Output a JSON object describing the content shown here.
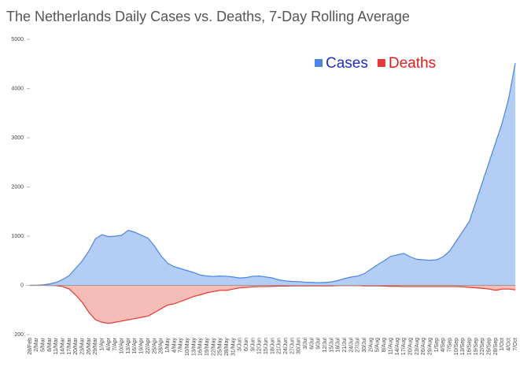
{
  "chart_data": {
    "type": "area",
    "title": "The Netherlands Daily Cases vs. Deaths, 7-Day Rolling Average",
    "categories": [
      "28/Feb",
      "2/Mar",
      "5/Mar",
      "8/Mar",
      "11/Mar",
      "14/Mar",
      "17/Mar",
      "20/Mar",
      "23/Mar",
      "26/Mar",
      "29/Mar",
      "1/Apr",
      "4/Apr",
      "7/Apr",
      "10/Apr",
      "13/Apr",
      "16/Apr",
      "19/Apr",
      "22/Apr",
      "25/Apr",
      "28/Apr",
      "1/May",
      "4/May",
      "7/May",
      "10/May",
      "13/May",
      "16/May",
      "19/May",
      "22/May",
      "25/May",
      "28/May",
      "31/May",
      "3/Jun",
      "6/Jun",
      "9/Jun",
      "12/Jun",
      "15/Jun",
      "18/Jun",
      "21/Jun",
      "24/Jun",
      "27/Jun",
      "30/Jun",
      "3/Jul",
      "6/Jul",
      "9/Jul",
      "12/Jul",
      "15/Jul",
      "18/Jul",
      "21/Jul",
      "24/Jul",
      "27/Jul",
      "30/Jul",
      "2/Aug",
      "5/Aug",
      "8/Aug",
      "11/Aug",
      "14/Aug",
      "17/Aug",
      "20/Aug",
      "23/Aug",
      "26/Aug",
      "29/Aug",
      "1/Sep",
      "4/Sep",
      "7/Sep",
      "10/Sep",
      "13/Sep",
      "16/Sep",
      "19/Sep",
      "22/Sep",
      "25/Sep",
      "28/Sep",
      "1/Oct",
      "4/Oct",
      "7/Oct"
    ],
    "series": [
      {
        "name": "Cases",
        "color": "#4a86e8",
        "fill": "#b3cdf4",
        "text_color": "#1f2fc7",
        "values": [
          0,
          2,
          10,
          30,
          60,
          120,
          200,
          350,
          500,
          700,
          950,
          1030,
          990,
          1000,
          1020,
          1120,
          1080,
          1020,
          960,
          800,
          600,
          450,
          380,
          340,
          300,
          260,
          210,
          190,
          180,
          190,
          185,
          170,
          150,
          160,
          185,
          190,
          170,
          150,
          110,
          90,
          80,
          75,
          65,
          60,
          55,
          60,
          70,
          100,
          140,
          170,
          190,
          240,
          330,
          420,
          500,
          590,
          620,
          650,
          580,
          530,
          520,
          510,
          520,
          580,
          700,
          900,
          1100,
          1300,
          1700,
          2100,
          2500,
          2900,
          3300,
          3800,
          4520
        ]
      },
      {
        "name": "Deaths",
        "color": "#e53935",
        "fill": "#f5bcb8",
        "text_color": "#e0201c",
        "axis": "y2",
        "values": [
          0,
          0,
          0,
          0,
          1,
          5,
          15,
          40,
          70,
          110,
          140,
          150,
          155,
          150,
          145,
          140,
          135,
          130,
          125,
          110,
          95,
          80,
          75,
          65,
          55,
          45,
          38,
          30,
          25,
          20,
          20,
          15,
          10,
          8,
          6,
          5,
          5,
          4,
          3,
          3,
          2,
          2,
          2,
          2,
          2,
          2,
          2,
          1,
          1,
          1,
          1,
          2,
          2,
          2,
          3,
          4,
          4,
          5,
          5,
          5,
          5,
          5,
          5,
          5,
          5,
          5,
          6,
          8,
          10,
          12,
          15,
          20,
          15,
          15,
          18
        ]
      }
    ],
    "ylim": [
      -1000,
      5000
    ],
    "yticks": [
      0,
      1000,
      2000,
      3000,
      4000,
      5000
    ],
    "y2lim": [
      200,
      -1000
    ],
    "y2ticks": [
      200
    ],
    "legend": "upper right"
  }
}
